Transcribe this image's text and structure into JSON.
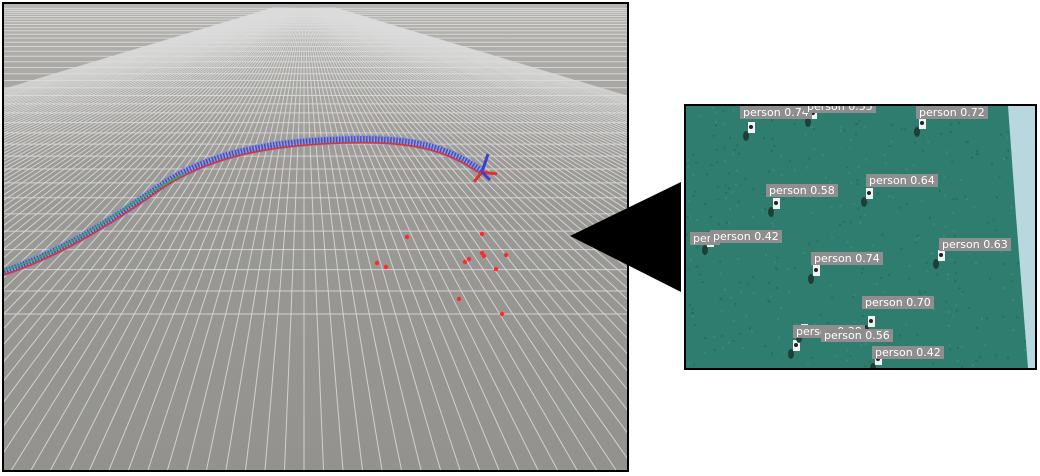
{
  "viewport3d": {
    "colors": {
      "ground": "#9b9a96",
      "grid_line": "#dcdcdc",
      "trajectory_red": "#e0322c",
      "trajectory_blue": "#3a3fd0",
      "trajectory_green": "#2fb04a",
      "point_marker": "#ff2a2a"
    },
    "markers": {
      "count": 12,
      "icon": "red-dot"
    },
    "pose_axes": {
      "icon": "pose-axes-icon"
    }
  },
  "camera_view": {
    "colors": {
      "ground": "#2f7d6e",
      "label_bg": "#8e8e8e",
      "label_text": "#ffffff"
    },
    "detections": [
      {
        "label": "person",
        "score": "0.74"
      },
      {
        "label": "person",
        "score": "0.55"
      },
      {
        "label": "person",
        "score": "0.72"
      },
      {
        "label": "person",
        "score": "0.58"
      },
      {
        "label": "person",
        "score": "0.64"
      },
      {
        "label": "pers",
        "score": ""
      },
      {
        "label": "person",
        "score": "0.42"
      },
      {
        "label": "person",
        "score": "0.63"
      },
      {
        "label": "person",
        "score": "0.74"
      },
      {
        "label": "person",
        "score": "0.70"
      },
      {
        "label": "person",
        "score": "0.38"
      },
      {
        "label": "person",
        "score": "0.56"
      },
      {
        "label": "person",
        "score": "0.42"
      }
    ]
  }
}
